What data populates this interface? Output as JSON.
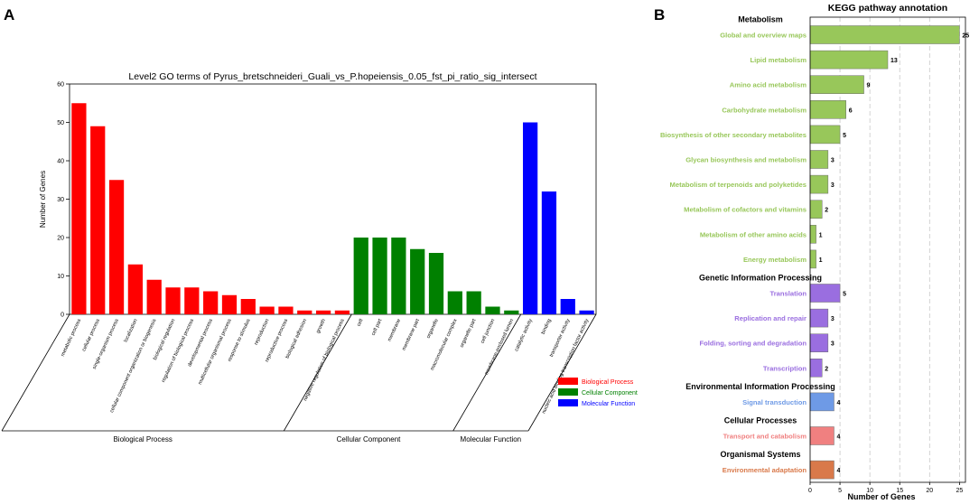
{
  "panels": {
    "a_label": "A",
    "b_label": "B"
  },
  "chart_data": [
    {
      "type": "bar",
      "title": "Level2 GO terms of Pyrus_bretschneideri_Guali_vs_P.hopeiensis_0.05_fst_pi_ratio_sig_intersect",
      "ylabel": "Number of Genes",
      "ylim": [
        0,
        60
      ],
      "yticks": [
        0,
        10,
        20,
        30,
        40,
        50,
        60
      ],
      "categories": [
        {
          "name": "metabolic process",
          "value": 55,
          "group": "bp"
        },
        {
          "name": "cellular process",
          "value": 49,
          "group": "bp"
        },
        {
          "name": "single-organism process",
          "value": 35,
          "group": "bp"
        },
        {
          "name": "localization",
          "value": 13,
          "group": "bp"
        },
        {
          "name": "cellular component organization or biogenesis",
          "value": 9,
          "group": "bp"
        },
        {
          "name": "biological regulation",
          "value": 7,
          "group": "bp"
        },
        {
          "name": "regulation of biological process",
          "value": 7,
          "group": "bp"
        },
        {
          "name": "developmental process",
          "value": 6,
          "group": "bp"
        },
        {
          "name": "multicellular organismal process",
          "value": 5,
          "group": "bp"
        },
        {
          "name": "response to stimulus",
          "value": 4,
          "group": "bp"
        },
        {
          "name": "reproduction",
          "value": 2,
          "group": "bp"
        },
        {
          "name": "reproductive process",
          "value": 2,
          "group": "bp"
        },
        {
          "name": "biological adhesion",
          "value": 1,
          "group": "bp"
        },
        {
          "name": "growth",
          "value": 1,
          "group": "bp"
        },
        {
          "name": "negative regulation of biological process",
          "value": 1,
          "group": "bp"
        },
        {
          "name": "cell",
          "value": 20,
          "group": "cc"
        },
        {
          "name": "cell part",
          "value": 20,
          "group": "cc"
        },
        {
          "name": "membrane",
          "value": 20,
          "group": "cc"
        },
        {
          "name": "membrane part",
          "value": 17,
          "group": "cc"
        },
        {
          "name": "organelle",
          "value": 16,
          "group": "cc"
        },
        {
          "name": "macromolecular complex",
          "value": 6,
          "group": "cc"
        },
        {
          "name": "organelle part",
          "value": 6,
          "group": "cc"
        },
        {
          "name": "cell junction",
          "value": 2,
          "group": "cc"
        },
        {
          "name": "membrane-enclosed lumen",
          "value": 1,
          "group": "cc"
        },
        {
          "name": "catalytic activity",
          "value": 50,
          "group": "mf"
        },
        {
          "name": "binding",
          "value": 32,
          "group": "mf"
        },
        {
          "name": "transporter activity",
          "value": 4,
          "group": "mf"
        },
        {
          "name": "nucleic acid binding transcription factor activity",
          "value": 1,
          "group": "mf"
        }
      ],
      "groups": {
        "bp": {
          "label": "Biological Process",
          "color": "#ff0000"
        },
        "cc": {
          "label": "Cellular Component",
          "color": "#008000"
        },
        "mf": {
          "label": "Molecular Function",
          "color": "#0000ff"
        }
      },
      "legend_position": "bottom-right"
    },
    {
      "type": "bar",
      "orientation": "horizontal",
      "title": "KEGG pathway annotation",
      "xlabel": "Number of Genes",
      "xlim": [
        0,
        26
      ],
      "xticks": [
        0,
        5,
        10,
        15,
        20,
        25
      ],
      "sections": [
        {
          "header": "Metabolism",
          "color": "#98c75a",
          "items": [
            {
              "name": "Global and overview maps",
              "value": 25
            },
            {
              "name": "Lipid metabolism",
              "value": 13
            },
            {
              "name": "Amino acid metabolism",
              "value": 9
            },
            {
              "name": "Carbohydrate metabolism",
              "value": 6
            },
            {
              "name": "Biosynthesis of other secondary metabolites",
              "value": 5
            },
            {
              "name": "Glycan biosynthesis and metabolism",
              "value": 3
            },
            {
              "name": "Metabolism of terpenoids and polyketides",
              "value": 3
            },
            {
              "name": "Metabolism of cofactors and vitamins",
              "value": 2
            },
            {
              "name": "Metabolism of other amino acids",
              "value": 1
            },
            {
              "name": "Energy metabolism",
              "value": 1
            }
          ]
        },
        {
          "header": "Genetic Information Processing",
          "color": "#9a6ee0",
          "items": [
            {
              "name": "Translation",
              "value": 5
            },
            {
              "name": "Replication and repair",
              "value": 3
            },
            {
              "name": "Folding, sorting and degradation",
              "value": 3
            },
            {
              "name": "Transcription",
              "value": 2
            }
          ]
        },
        {
          "header": "Environmental Information Processing",
          "color": "#6e9ae6",
          "items": [
            {
              "name": "Signal transduction",
              "value": 4
            }
          ]
        },
        {
          "header": "Cellular Processes",
          "color": "#f08080",
          "items": [
            {
              "name": "Transport and catabolism",
              "value": 4
            }
          ]
        },
        {
          "header": "Organismal Systems",
          "color": "#d9794a",
          "items": [
            {
              "name": "Environmental adaptation",
              "value": 4
            }
          ]
        }
      ]
    }
  ]
}
